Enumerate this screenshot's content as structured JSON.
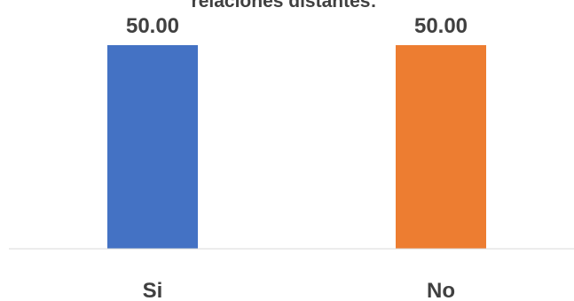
{
  "chart_data": {
    "type": "bar",
    "title": "relaciones distantes:",
    "categories": [
      "Si",
      "No"
    ],
    "values": [
      50.0,
      50.0
    ],
    "data_labels": [
      "50.00",
      "50.00"
    ],
    "ylim": [
      0,
      55
    ],
    "grid": false,
    "legend": "none",
    "colors": [
      "#4472C4",
      "#ED7D31"
    ],
    "axis_color": "#D9D9D9",
    "text_color": "#404040"
  }
}
